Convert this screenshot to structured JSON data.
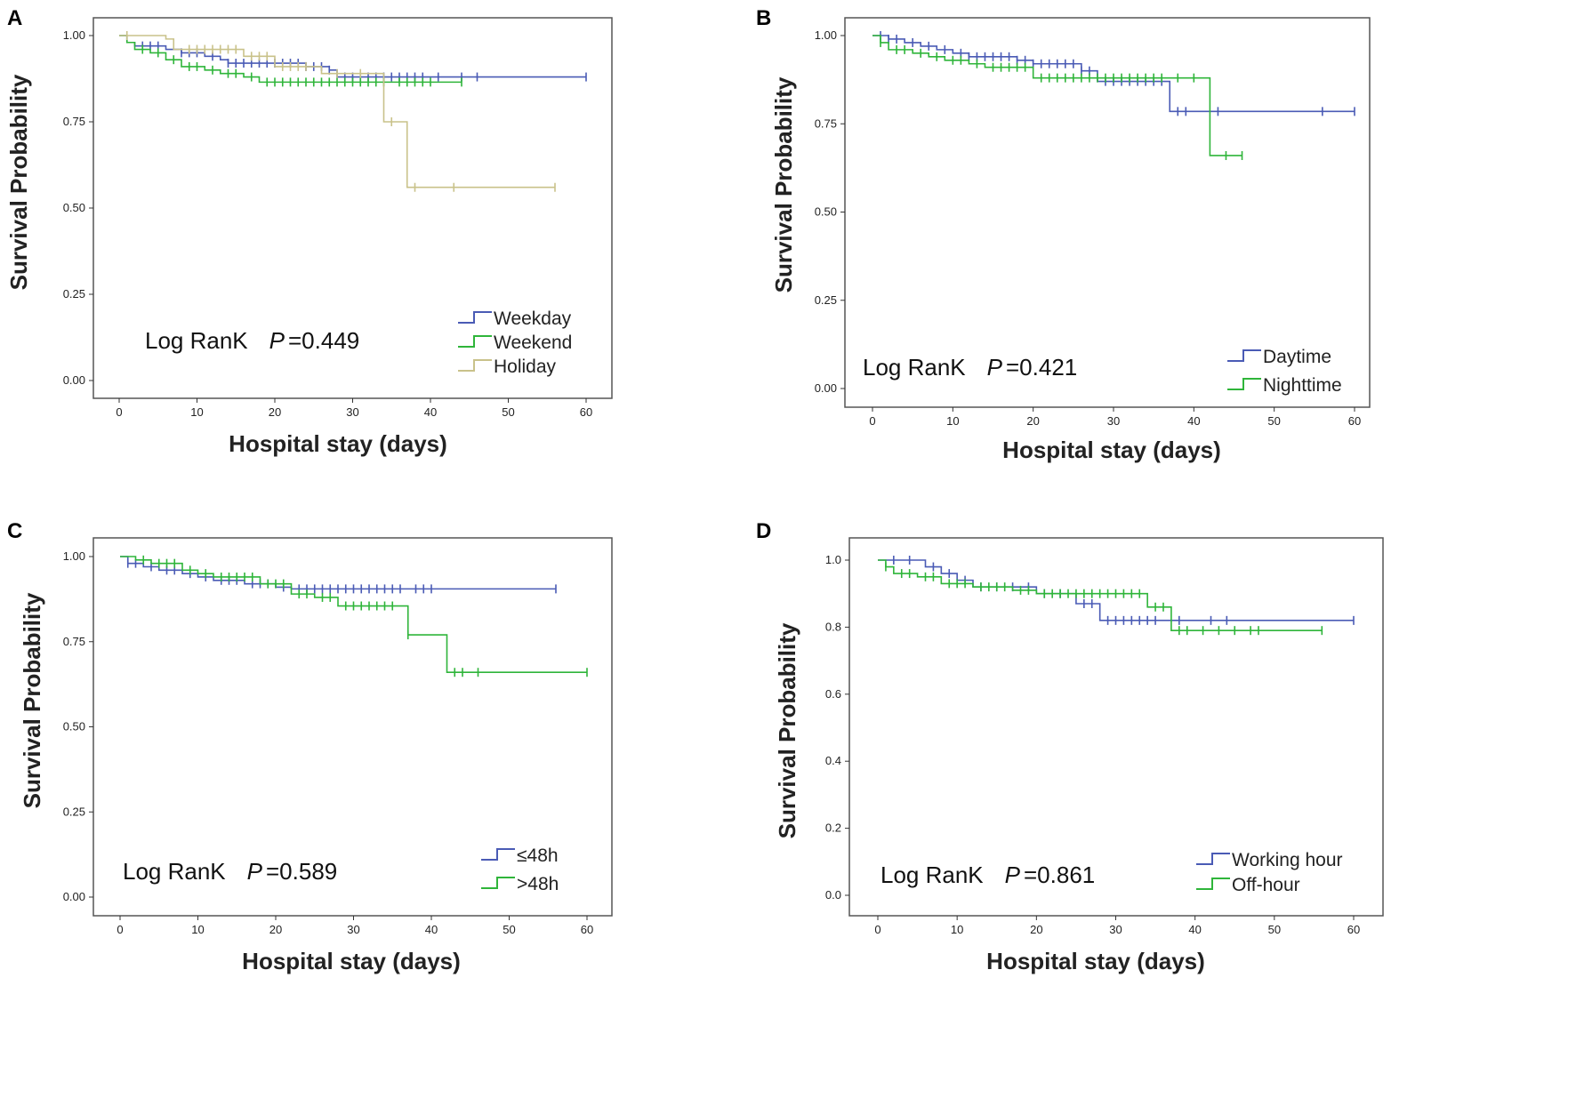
{
  "chart_data": [
    {
      "type": "line",
      "subtype": "kaplan-meier",
      "panel_label": "A",
      "xlabel": "Hospital stay (days)",
      "ylabel": "Survival Probability",
      "xlim": [
        0,
        60
      ],
      "ylim": [
        0,
        1
      ],
      "xticks": [
        "0",
        "10",
        "20",
        "30",
        "40",
        "50",
        "60"
      ],
      "yticks": [
        "0.00",
        "0.25",
        "0.50",
        "0.75",
        "1.00"
      ],
      "ytick_values": [
        0,
        0.25,
        0.5,
        0.75,
        1
      ],
      "annotation": {
        "test": "Log RanK",
        "p_label": "P",
        "p_value": "=0.449"
      },
      "legend_placement": "bottom-right",
      "series": [
        {
          "name": "Weekday",
          "color": "#4a5bb5",
          "end": 60,
          "steps": [
            [
              0,
              1
            ],
            [
              1,
              0.98
            ],
            [
              2,
              0.97
            ],
            [
              6,
              0.96
            ],
            [
              8,
              0.95
            ],
            [
              11,
              0.94
            ],
            [
              13,
              0.93
            ],
            [
              14,
              0.92
            ],
            [
              24,
              0.91
            ],
            [
              27,
              0.9
            ],
            [
              28,
              0.88
            ]
          ],
          "censored": [
            3,
            4,
            5,
            8,
            9,
            10,
            12,
            14,
            15,
            16,
            17,
            18,
            19,
            20,
            21,
            22,
            23,
            24,
            25,
            26,
            27,
            29,
            30,
            31,
            32,
            33,
            34,
            35,
            36,
            37,
            38,
            39,
            41,
            44,
            46,
            60
          ]
        },
        {
          "name": "Weekend",
          "color": "#2fb53a",
          "end": 44,
          "steps": [
            [
              0,
              1
            ],
            [
              1,
              0.98
            ],
            [
              2,
              0.96
            ],
            [
              4,
              0.95
            ],
            [
              6,
              0.93
            ],
            [
              8,
              0.91
            ],
            [
              11,
              0.9
            ],
            [
              13,
              0.89
            ],
            [
              16,
              0.88
            ],
            [
              18,
              0.865
            ]
          ],
          "censored": [
            3,
            5,
            7,
            9,
            10,
            12,
            14,
            15,
            17,
            19,
            20,
            21,
            22,
            23,
            24,
            25,
            26,
            27,
            28,
            29,
            30,
            31,
            32,
            33,
            34,
            36,
            37,
            38,
            39,
            40,
            44
          ]
        },
        {
          "name": "Holiday",
          "color": "#c9c28a",
          "end": 56,
          "steps": [
            [
              0,
              1
            ],
            [
              6,
              0.99
            ],
            [
              7,
              0.96
            ],
            [
              16,
              0.94
            ],
            [
              20,
              0.91
            ],
            [
              26,
              0.89
            ],
            [
              34,
              0.75
            ],
            [
              37,
              0.56
            ]
          ],
          "censored": [
            1,
            9,
            10,
            11,
            12,
            13,
            14,
            15,
            17,
            18,
            19,
            21,
            22,
            23,
            24,
            28,
            31,
            35,
            38,
            43,
            56
          ]
        }
      ]
    },
    {
      "type": "line",
      "subtype": "kaplan-meier",
      "panel_label": "B",
      "xlabel": "Hospital stay (days)",
      "ylabel": "Survival Probability",
      "xlim": [
        0,
        60
      ],
      "ylim": [
        0,
        1
      ],
      "xticks": [
        "0",
        "10",
        "20",
        "30",
        "40",
        "50",
        "60"
      ],
      "yticks": [
        "0.00",
        "0.25",
        "0.50",
        "0.75",
        "1.00"
      ],
      "ytick_values": [
        0,
        0.25,
        0.5,
        0.75,
        1
      ],
      "annotation": {
        "test": "Log RanK",
        "p_label": "P",
        "p_value": "=0.421"
      },
      "legend_placement": "bottom-right",
      "series": [
        {
          "name": "Daytime",
          "color": "#4a5bb5",
          "end": 60,
          "steps": [
            [
              0,
              1
            ],
            [
              2,
              0.99
            ],
            [
              4,
              0.98
            ],
            [
              6,
              0.97
            ],
            [
              8,
              0.96
            ],
            [
              10,
              0.95
            ],
            [
              12,
              0.94
            ],
            [
              18,
              0.93
            ],
            [
              20,
              0.92
            ],
            [
              26,
              0.9
            ],
            [
              28,
              0.87
            ],
            [
              37,
              0.785
            ]
          ],
          "censored": [
            1,
            2,
            3,
            5,
            7,
            9,
            11,
            12,
            13,
            14,
            15,
            16,
            17,
            18,
            19,
            20,
            21,
            22,
            23,
            24,
            25,
            26,
            27,
            29,
            30,
            31,
            32,
            33,
            34,
            35,
            36,
            38,
            39,
            43,
            56,
            60
          ]
        },
        {
          "name": "Nighttime",
          "color": "#2fb53a",
          "end": 46,
          "steps": [
            [
              0,
              1
            ],
            [
              1,
              0.98
            ],
            [
              2,
              0.96
            ],
            [
              5,
              0.95
            ],
            [
              7,
              0.94
            ],
            [
              9,
              0.93
            ],
            [
              12,
              0.92
            ],
            [
              14,
              0.91
            ],
            [
              20,
              0.88
            ],
            [
              42,
              0.66
            ]
          ],
          "censored": [
            1,
            3,
            4,
            6,
            8,
            10,
            11,
            13,
            15,
            16,
            17,
            18,
            19,
            21,
            22,
            23,
            24,
            25,
            26,
            27,
            28,
            29,
            30,
            31,
            32,
            33,
            34,
            35,
            36,
            38,
            40,
            44,
            46
          ]
        }
      ]
    },
    {
      "type": "line",
      "subtype": "kaplan-meier",
      "panel_label": "C",
      "xlabel": "Hospital stay (days)",
      "ylabel": "Survival Probability",
      "xlim": [
        0,
        60
      ],
      "ylim": [
        0,
        1
      ],
      "xticks": [
        "0",
        "10",
        "20",
        "30",
        "40",
        "50",
        "60"
      ],
      "yticks": [
        "0.00",
        "0.25",
        "0.50",
        "0.75",
        "1.00"
      ],
      "ytick_values": [
        0,
        0.25,
        0.5,
        0.75,
        1
      ],
      "annotation": {
        "test": "Log RanK",
        "p_label": "P",
        "p_value": "=0.589"
      },
      "legend_placement": "bottom-right",
      "series": [
        {
          "name": "≤48h",
          "color": "#4a5bb5",
          "end": 56,
          "steps": [
            [
              0,
              1
            ],
            [
              1,
              0.98
            ],
            [
              3,
              0.97
            ],
            [
              5,
              0.96
            ],
            [
              8,
              0.95
            ],
            [
              10,
              0.94
            ],
            [
              12,
              0.93
            ],
            [
              16,
              0.92
            ],
            [
              20,
              0.91
            ],
            [
              22,
              0.905
            ]
          ],
          "censored": [
            1,
            2,
            4,
            6,
            7,
            9,
            11,
            13,
            14,
            15,
            17,
            18,
            19,
            21,
            23,
            24,
            25,
            26,
            27,
            28,
            29,
            30,
            31,
            32,
            33,
            34,
            35,
            36,
            38,
            39,
            40,
            56
          ]
        },
        {
          "name": ">48h",
          "color": "#2fb53a",
          "end": 60,
          "steps": [
            [
              0,
              1
            ],
            [
              2,
              0.99
            ],
            [
              4,
              0.98
            ],
            [
              8,
              0.96
            ],
            [
              10,
              0.95
            ],
            [
              12,
              0.94
            ],
            [
              18,
              0.92
            ],
            [
              22,
              0.89
            ],
            [
              25,
              0.88
            ],
            [
              28,
              0.855
            ],
            [
              37,
              0.77
            ],
            [
              42,
              0.66
            ]
          ],
          "censored": [
            3,
            5,
            6,
            7,
            9,
            11,
            13,
            14,
            15,
            16,
            17,
            19,
            20,
            21,
            23,
            24,
            26,
            27,
            29,
            30,
            31,
            32,
            33,
            34,
            35,
            37,
            43,
            44,
            46,
            60
          ]
        }
      ]
    },
    {
      "type": "line",
      "subtype": "kaplan-meier",
      "panel_label": "D",
      "xlabel": "Hospital stay (days)",
      "ylabel": "Survival Probability",
      "xlim": [
        0,
        60
      ],
      "ylim": [
        0,
        1
      ],
      "xticks": [
        "0",
        "10",
        "20",
        "30",
        "40",
        "50",
        "60"
      ],
      "yticks": [
        "0.0",
        "0.2",
        "0.4",
        "0.6",
        "0.8",
        "1.0"
      ],
      "ytick_values": [
        0,
        0.2,
        0.4,
        0.6,
        0.8,
        1
      ],
      "annotation": {
        "test": "Log RanK",
        "p_label": "P",
        "p_value": "=0.861"
      },
      "legend_placement": "bottom-right",
      "series": [
        {
          "name": "Working hour",
          "color": "#4a5bb5",
          "end": 60,
          "steps": [
            [
              0,
              1
            ],
            [
              6,
              0.98
            ],
            [
              8,
              0.96
            ],
            [
              10,
              0.94
            ],
            [
              12,
              0.92
            ],
            [
              20,
              0.9
            ],
            [
              25,
              0.87
            ],
            [
              28,
              0.82
            ]
          ],
          "censored": [
            2,
            4,
            7,
            9,
            11,
            13,
            15,
            17,
            19,
            21,
            23,
            26,
            27,
            29,
            30,
            31,
            32,
            33,
            34,
            35,
            38,
            42,
            44,
            60
          ]
        },
        {
          "name": "Off-hour",
          "color": "#2fb53a",
          "end": 56,
          "steps": [
            [
              0,
              1
            ],
            [
              1,
              0.98
            ],
            [
              2,
              0.96
            ],
            [
              5,
              0.95
            ],
            [
              8,
              0.93
            ],
            [
              12,
              0.92
            ],
            [
              17,
              0.91
            ],
            [
              20,
              0.9
            ],
            [
              34,
              0.86
            ],
            [
              37,
              0.79
            ]
          ],
          "censored": [
            1,
            3,
            4,
            6,
            7,
            9,
            10,
            11,
            13,
            14,
            15,
            16,
            18,
            19,
            21,
            22,
            23,
            24,
            25,
            26,
            27,
            28,
            29,
            30,
            31,
            32,
            33,
            35,
            36,
            38,
            39,
            41,
            43,
            45,
            47,
            48,
            56
          ]
        }
      ]
    }
  ]
}
